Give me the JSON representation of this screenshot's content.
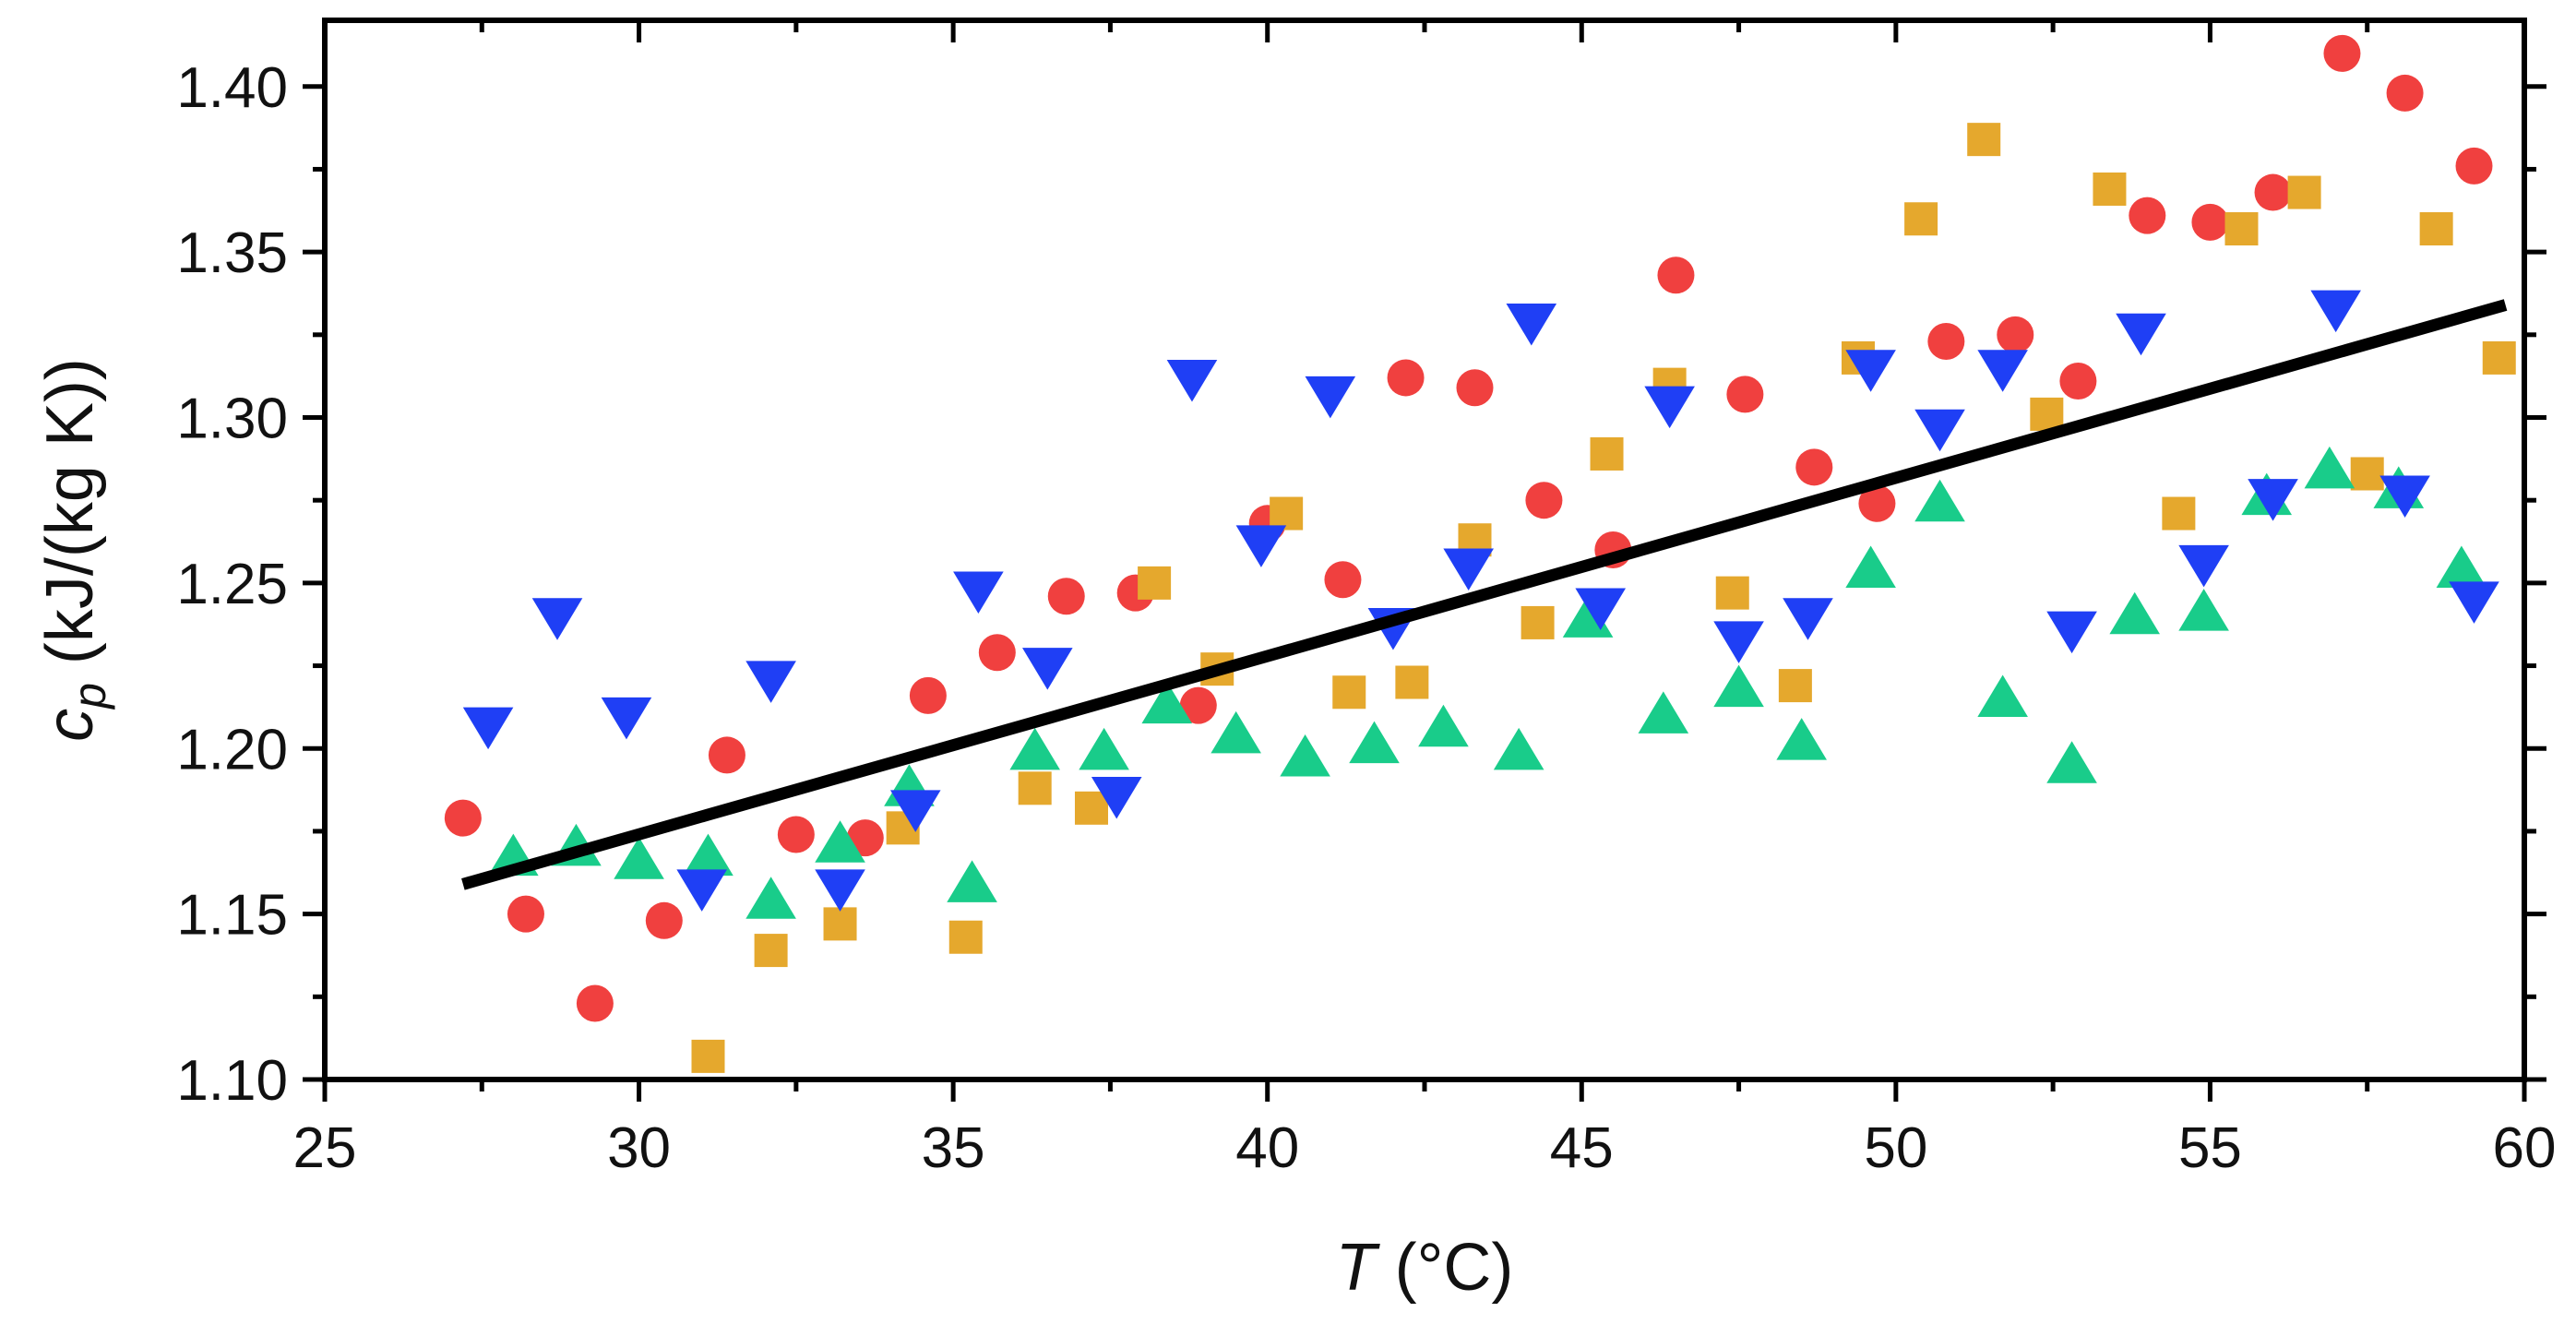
{
  "chart_data": {
    "type": "scatter",
    "title": "",
    "xlabel": {
      "symbol": "T",
      "unit": " (°C)"
    },
    "ylabel": {
      "symbol": "c",
      "sub": "p",
      "unit": " (kJ/(kg K))"
    },
    "xlim": [
      25,
      60
    ],
    "ylim": [
      1.1,
      1.42
    ],
    "x_ticks": [
      25,
      30,
      35,
      40,
      45,
      50,
      55,
      60
    ],
    "x_tick_labels": [
      "25",
      "30",
      "35",
      "40",
      "45",
      "50",
      "55",
      "60"
    ],
    "y_ticks": [
      1.1,
      1.15,
      1.2,
      1.25,
      1.3,
      1.35,
      1.4
    ],
    "y_tick_labels": [
      "1.10",
      "1.15",
      "1.20",
      "1.25",
      "1.30",
      "1.35",
      "1.40"
    ],
    "grid": false,
    "series": [
      {
        "name": "circles",
        "marker": "circle",
        "color": "#f0403f",
        "points": [
          [
            27.2,
            1.179
          ],
          [
            28.2,
            1.15
          ],
          [
            29.3,
            1.123
          ],
          [
            30.4,
            1.148
          ],
          [
            31.4,
            1.198
          ],
          [
            32.5,
            1.174
          ],
          [
            33.6,
            1.173
          ],
          [
            34.6,
            1.216
          ],
          [
            35.7,
            1.229
          ],
          [
            36.8,
            1.246
          ],
          [
            37.9,
            1.247
          ],
          [
            38.9,
            1.213
          ],
          [
            40.0,
            1.268
          ],
          [
            41.2,
            1.251
          ],
          [
            42.2,
            1.312
          ],
          [
            43.3,
            1.309
          ],
          [
            44.4,
            1.275
          ],
          [
            45.5,
            1.26
          ],
          [
            46.5,
            1.343
          ],
          [
            47.6,
            1.307
          ],
          [
            48.7,
            1.285
          ],
          [
            49.7,
            1.274
          ],
          [
            50.8,
            1.323
          ],
          [
            51.9,
            1.325
          ],
          [
            52.9,
            1.311
          ],
          [
            54.0,
            1.361
          ],
          [
            55.0,
            1.359
          ],
          [
            56.0,
            1.368
          ],
          [
            57.1,
            1.41
          ],
          [
            58.1,
            1.398
          ],
          [
            59.2,
            1.376
          ]
        ]
      },
      {
        "name": "squares",
        "marker": "square",
        "color": "#e5a82d",
        "points": [
          [
            31.1,
            1.107
          ],
          [
            32.1,
            1.139
          ],
          [
            33.2,
            1.147
          ],
          [
            34.2,
            1.176
          ],
          [
            35.2,
            1.143
          ],
          [
            36.3,
            1.188
          ],
          [
            37.2,
            1.182
          ],
          [
            38.2,
            1.25
          ],
          [
            39.2,
            1.224
          ],
          [
            40.3,
            1.271
          ],
          [
            41.3,
            1.217
          ],
          [
            42.3,
            1.22
          ],
          [
            43.3,
            1.263
          ],
          [
            44.3,
            1.238
          ],
          [
            45.4,
            1.289
          ],
          [
            46.4,
            1.31
          ],
          [
            47.4,
            1.247
          ],
          [
            48.4,
            1.219
          ],
          [
            49.4,
            1.318
          ],
          [
            50.4,
            1.36
          ],
          [
            51.4,
            1.384
          ],
          [
            52.4,
            1.301
          ],
          [
            53.4,
            1.369
          ],
          [
            54.5,
            1.271
          ],
          [
            55.5,
            1.357
          ],
          [
            56.5,
            1.368
          ],
          [
            57.5,
            1.283
          ],
          [
            58.6,
            1.357
          ],
          [
            59.6,
            1.318
          ]
        ]
      },
      {
        "name": "triangles-up",
        "marker": "triangle-up",
        "color": "#19cc8a",
        "points": [
          [
            28.0,
            1.167
          ],
          [
            29.0,
            1.17
          ],
          [
            30.0,
            1.166
          ],
          [
            31.1,
            1.167
          ],
          [
            32.1,
            1.154
          ],
          [
            33.2,
            1.171
          ],
          [
            34.3,
            1.188
          ],
          [
            35.3,
            1.159
          ],
          [
            36.3,
            1.199
          ],
          [
            37.4,
            1.199
          ],
          [
            38.4,
            1.213
          ],
          [
            39.5,
            1.204
          ],
          [
            40.6,
            1.197
          ],
          [
            41.7,
            1.201
          ],
          [
            42.8,
            1.206
          ],
          [
            44.0,
            1.199
          ],
          [
            45.1,
            1.239
          ],
          [
            46.3,
            1.21
          ],
          [
            47.5,
            1.218
          ],
          [
            48.5,
            1.202
          ],
          [
            49.6,
            1.254
          ],
          [
            50.7,
            1.274
          ],
          [
            51.7,
            1.215
          ],
          [
            52.8,
            1.195
          ],
          [
            53.8,
            1.24
          ],
          [
            54.9,
            1.241
          ],
          [
            55.9,
            1.276
          ],
          [
            56.9,
            1.284
          ],
          [
            58.0,
            1.278
          ],
          [
            59.0,
            1.254
          ]
        ]
      },
      {
        "name": "triangles-down",
        "marker": "triangle-down",
        "color": "#1f3ff5",
        "points": [
          [
            27.6,
            1.207
          ],
          [
            28.7,
            1.24
          ],
          [
            29.8,
            1.21
          ],
          [
            31.0,
            1.158
          ],
          [
            32.1,
            1.221
          ],
          [
            33.2,
            1.158
          ],
          [
            34.4,
            1.182
          ],
          [
            35.4,
            1.248
          ],
          [
            36.5,
            1.225
          ],
          [
            37.6,
            1.186
          ],
          [
            38.8,
            1.312
          ],
          [
            39.9,
            1.262
          ],
          [
            41.0,
            1.307
          ],
          [
            42.0,
            1.237
          ],
          [
            43.2,
            1.255
          ],
          [
            44.2,
            1.329
          ],
          [
            45.3,
            1.243
          ],
          [
            46.4,
            1.304
          ],
          [
            47.5,
            1.233
          ],
          [
            48.6,
            1.24
          ],
          [
            49.6,
            1.315
          ],
          [
            50.7,
            1.297
          ],
          [
            51.7,
            1.315
          ],
          [
            52.8,
            1.236
          ],
          [
            53.9,
            1.326
          ],
          [
            54.9,
            1.256
          ],
          [
            56.0,
            1.276
          ],
          [
            57.0,
            1.333
          ],
          [
            58.1,
            1.277
          ],
          [
            59.2,
            1.245
          ]
        ]
      }
    ],
    "fit_line": {
      "name": "linear-fit",
      "color": "#000000",
      "x": [
        27.2,
        59.7
      ],
      "y": [
        1.159,
        1.334
      ]
    }
  }
}
